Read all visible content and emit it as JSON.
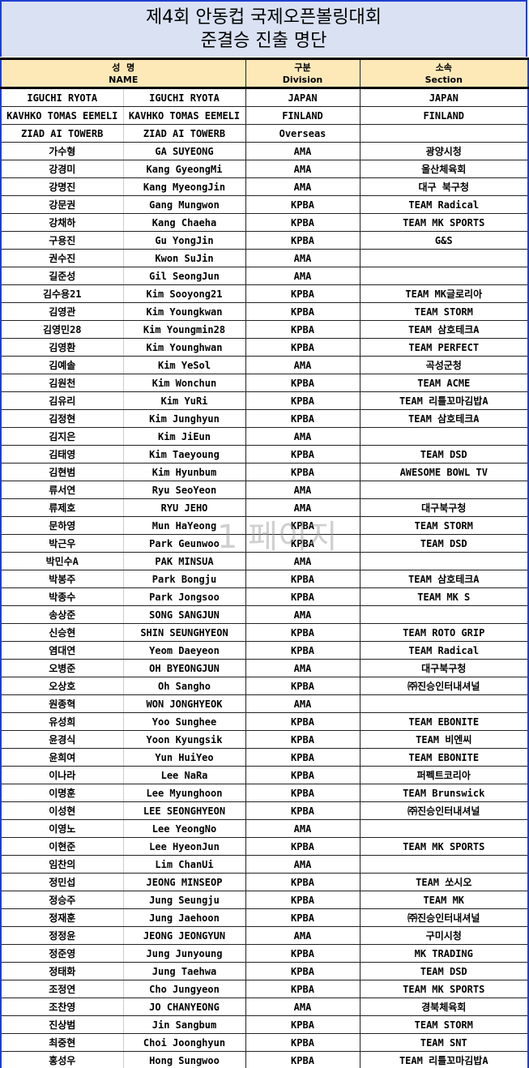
{
  "title": {
    "line1": "제4회 안동컵 국제오픈볼링대회",
    "line2": "준결승 진출 명단"
  },
  "header": {
    "name_ko": "성  명",
    "name_en": "NAME",
    "division_ko": "구분",
    "division_en": "Division",
    "section_ko": "소속",
    "section_en": "Section"
  },
  "watermark": "1 페이지",
  "rows": [
    [
      "IGUCHI RYOTA",
      "IGUCHI RYOTA",
      "JAPAN",
      "JAPAN"
    ],
    [
      "KAVHKO TOMAS EEMELI",
      "KAVHKO TOMAS EEMELI",
      "FINLAND",
      "FINLAND"
    ],
    [
      "ZIAD AI TOWERB",
      "ZIAD AI TOWERB",
      "Overseas",
      ""
    ],
    [
      "가수형",
      "GA SUYEONG",
      "AMA",
      "광양시청"
    ],
    [
      "강경미",
      "Kang GyeongMi",
      "AMA",
      "울산체육회"
    ],
    [
      "강명진",
      "Kang MyeongJin",
      "AMA",
      "대구 북구청"
    ],
    [
      "강문권",
      "Gang Mungwon",
      "KPBA",
      "TEAM Radical"
    ],
    [
      "강채하",
      "Kang Chaeha",
      "KPBA",
      "TEAM MK SPORTS"
    ],
    [
      "구용진",
      "Gu YongJin",
      "KPBA",
      "G&S"
    ],
    [
      "권수진",
      "Kwon SuJin",
      "AMA",
      ""
    ],
    [
      "길준성",
      "Gil SeongJun",
      "AMA",
      ""
    ],
    [
      "김수용21",
      "Kim Sooyong21",
      "KPBA",
      "TEAM MK글로리아"
    ],
    [
      "김영관",
      "Kim Youngkwan",
      "KPBA",
      "TEAM STORM"
    ],
    [
      "김영민28",
      "Kim Youngmin28",
      "KPBA",
      "TEAM 삼호테크A"
    ],
    [
      "김영환",
      "Kim Younghwan",
      "KPBA",
      "TEAM PERFECT"
    ],
    [
      "김예솔",
      "Kim YeSol",
      "AMA",
      "곡성군청"
    ],
    [
      "김원천",
      "Kim Wonchun",
      "KPBA",
      "TEAM ACME"
    ],
    [
      "김유리",
      "Kim YuRi",
      "KPBA",
      "TEAM 리틀꼬마김밥A"
    ],
    [
      "김정현",
      "Kim Junghyun",
      "KPBA",
      "TEAM 삼호테크A"
    ],
    [
      "김지은",
      "Kim JiEun",
      "AMA",
      ""
    ],
    [
      "김태영",
      "Kim Taeyoung",
      "KPBA",
      "TEAM DSD"
    ],
    [
      "김현범",
      "Kim Hyunbum",
      "KPBA",
      "AWESOME BOWL TV"
    ],
    [
      "류서연",
      "Ryu SeoYeon",
      "AMA",
      ""
    ],
    [
      "류제호",
      "RYU JEHO",
      "AMA",
      "대구북구청"
    ],
    [
      "문하영",
      "Mun HaYeong",
      "KPBA",
      "TEAM STORM"
    ],
    [
      "박근우",
      "Park Geunwoo",
      "KPBA",
      "TEAM DSD"
    ],
    [
      "박민수A",
      "PAK MINSUA",
      "AMA",
      ""
    ],
    [
      "박봉주",
      "Park Bongju",
      "KPBA",
      "TEAM 삼호테크A"
    ],
    [
      "박종수",
      "Park Jongsoo",
      "KPBA",
      "TEAM MK S"
    ],
    [
      "송상준",
      "SONG SANGJUN",
      "AMA",
      ""
    ],
    [
      "신승현",
      "SHIN SEUNGHYEON",
      "KPBA",
      "TEAM ROTO GRIP"
    ],
    [
      "염대연",
      "Yeom Daeyeon",
      "KPBA",
      "TEAM Radical"
    ],
    [
      "오병준",
      "OH BYEONGJUN",
      "AMA",
      "대구북구청"
    ],
    [
      "오상호",
      "Oh Sangho",
      "KPBA",
      "㈜진승인터내셔널"
    ],
    [
      "원종혁",
      "WON JONGHYEOK",
      "AMA",
      ""
    ],
    [
      "유성희",
      "Yoo Sunghee",
      "KPBA",
      "TEAM EBONITE"
    ],
    [
      "윤경식",
      "Yoon Kyungsik",
      "KPBA",
      "TEAM 비엔씨"
    ],
    [
      "윤희여",
      "Yun HuiYeo",
      "KPBA",
      "TEAM EBONITE"
    ],
    [
      "이나라",
      "Lee NaRa",
      "KPBA",
      "퍼펙트코리아"
    ],
    [
      "이명훈",
      "Lee Myunghoon",
      "KPBA",
      "TEAM Brunswick"
    ],
    [
      "이성현",
      "LEE SEONGHYEON",
      "KPBA",
      "㈜진승인터내셔널"
    ],
    [
      "이영노",
      "Lee YeongNo",
      "AMA",
      ""
    ],
    [
      "이현준",
      "Lee HyeonJun",
      "KPBA",
      "TEAM MK SPORTS"
    ],
    [
      "임찬의",
      "Lim ChanUi",
      "AMA",
      ""
    ],
    [
      "정민섭",
      "JEONG MINSEOP",
      "KPBA",
      "TEAM 쏘시오"
    ],
    [
      "정승주",
      "Jung Seungju",
      "KPBA",
      "TEAM MK"
    ],
    [
      "정재훈",
      "Jung Jaehoon",
      "KPBA",
      "㈜진승인터내셔널"
    ],
    [
      "정정윤",
      "JEONG JEONGYUN",
      "AMA",
      "구미시청"
    ],
    [
      "정준영",
      "Jung Junyoung",
      "KPBA",
      "MK TRADING"
    ],
    [
      "정태화",
      "Jung Taehwa",
      "KPBA",
      "TEAM DSD"
    ],
    [
      "조정연",
      "Cho Jungyeon",
      "KPBA",
      "TEAM MK SPORTS"
    ],
    [
      "조찬영",
      "JO CHANYEONG",
      "AMA",
      "경북체육회"
    ],
    [
      "진상범",
      "Jin Sangbum",
      "KPBA",
      "TEAM STORM"
    ],
    [
      "최중현",
      "Choi Joonghyun",
      "KPBA",
      "TEAM SNT"
    ],
    [
      "홍성우",
      "Hong Sungwoo",
      "KPBA",
      "TEAM 리틀꼬마김밥A"
    ]
  ]
}
